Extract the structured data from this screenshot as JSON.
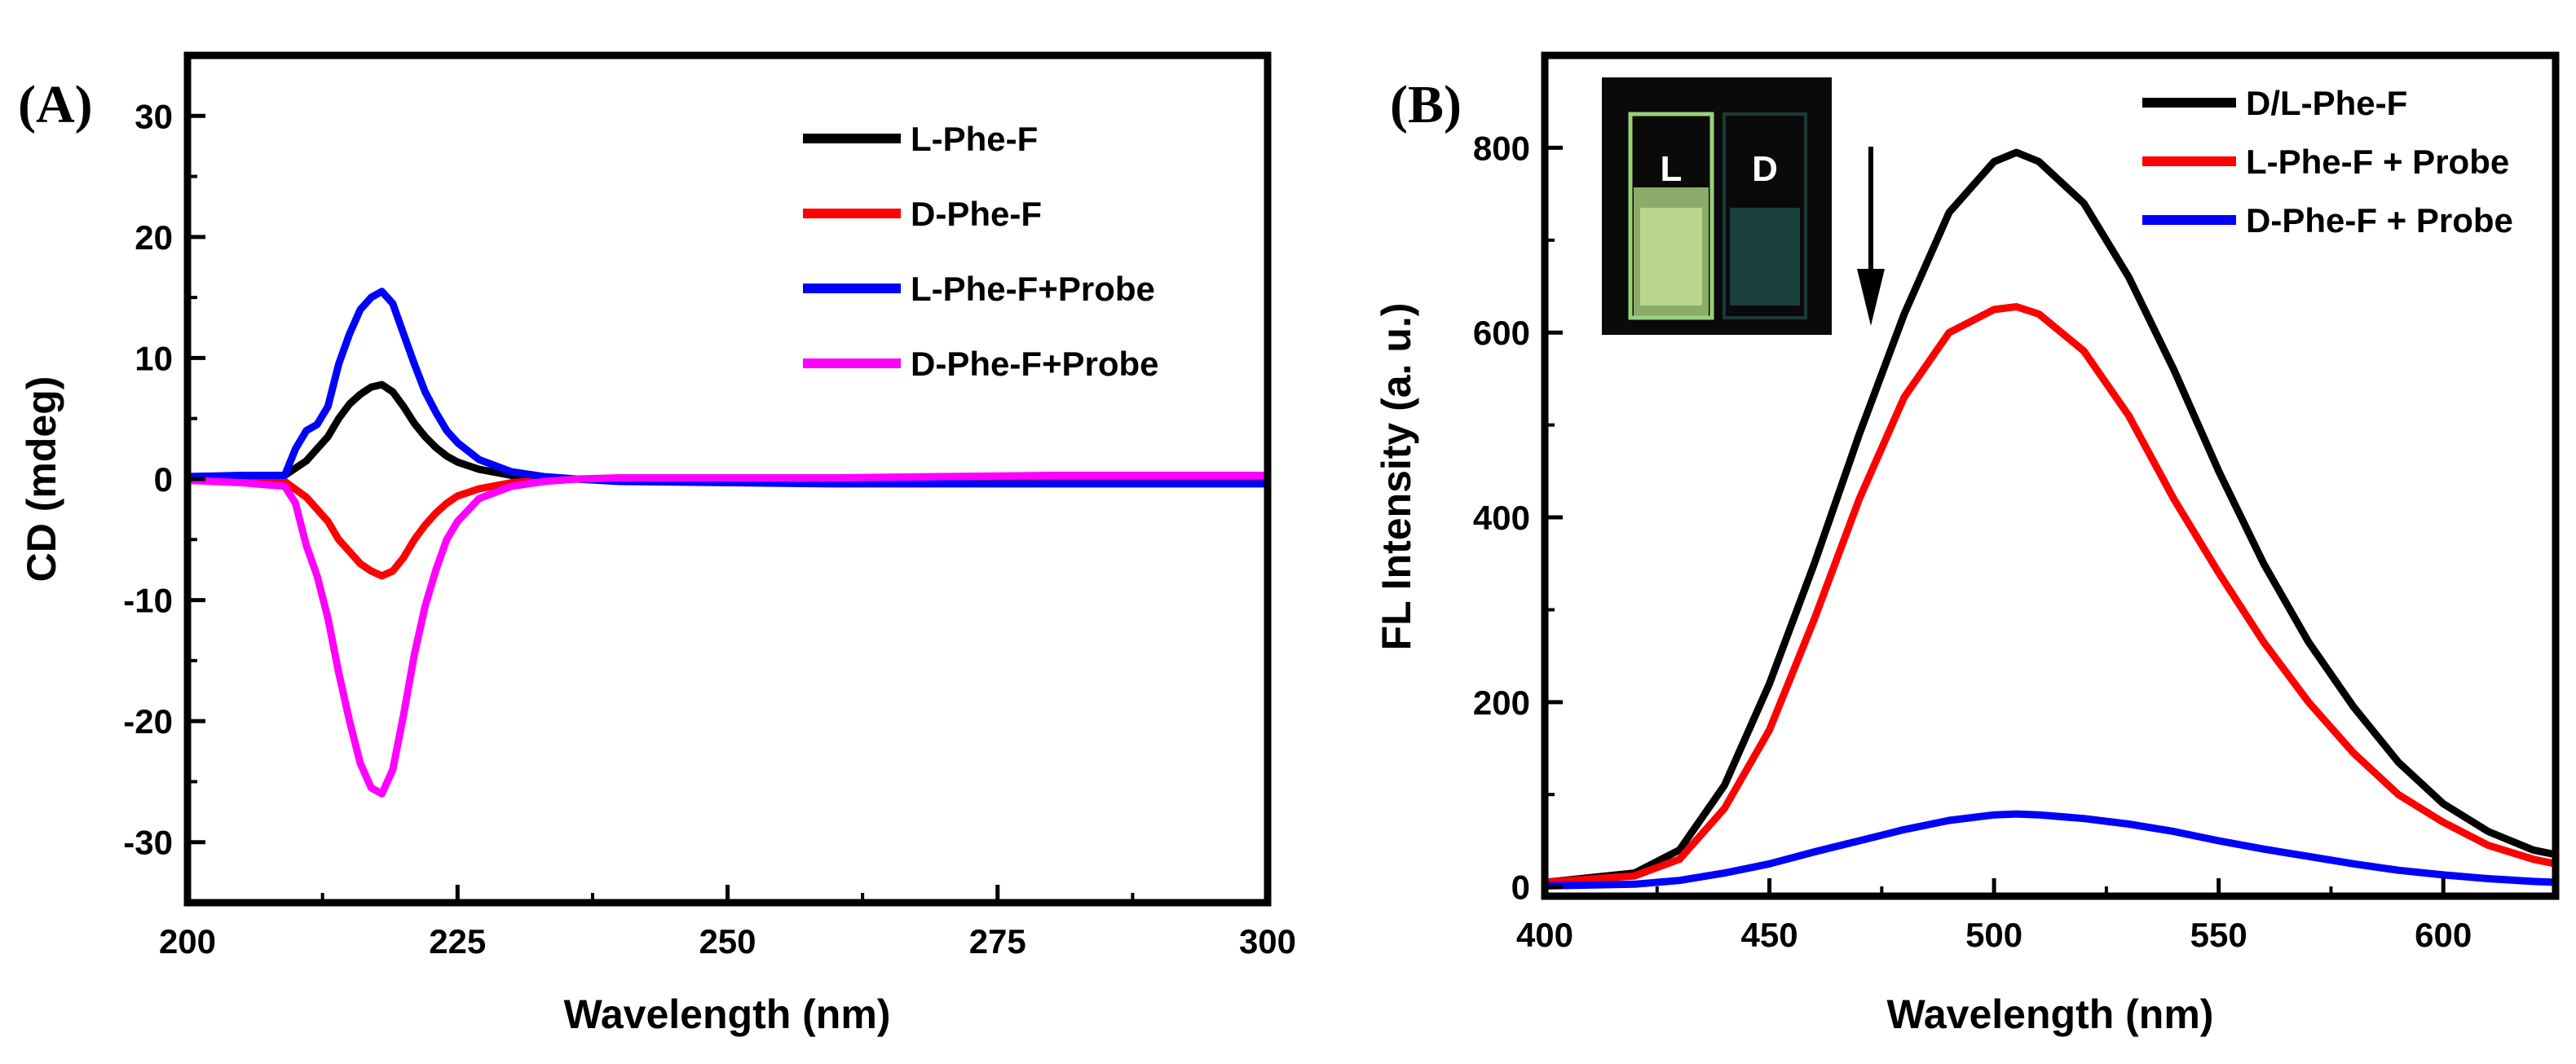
{
  "panels": [
    {
      "panel_label": "(A)",
      "chart_data": {
        "type": "line",
        "title": "",
        "xlabel": "Wavelength (nm)",
        "ylabel": "CD (mdeg)",
        "xlim": [
          200,
          300
        ],
        "ylim": [
          -35,
          35
        ],
        "xticks": [
          200,
          225,
          250,
          275,
          300
        ],
        "yticks": [
          -30,
          -20,
          -10,
          0,
          10,
          20,
          30
        ],
        "grid": false,
        "legend_position": "top-right",
        "series": [
          {
            "name": "L-Phe-F",
            "color": "#000000",
            "x": [
              200,
              205,
              209,
              211,
              212,
              213,
              214,
              215,
              216,
              217,
              218,
              219,
              220,
              221,
              222,
              223,
              224,
              225,
              227,
              230,
              233,
              236,
              240,
              260,
              280,
              300
            ],
            "y": [
              0.2,
              0.2,
              0.3,
              1.5,
              2.5,
              3.5,
              5.0,
              6.2,
              7.0,
              7.6,
              7.8,
              7.2,
              6.0,
              4.6,
              3.5,
              2.6,
              1.9,
              1.4,
              0.8,
              0.3,
              0.1,
              0.0,
              -0.1,
              -0.3,
              -0.3,
              -0.3
            ]
          },
          {
            "name": "D-Phe-F",
            "color": "#ff0000",
            "x": [
              200,
              205,
              209,
              211,
              212,
              213,
              214,
              215,
              216,
              217,
              218,
              219,
              220,
              221,
              222,
              223,
              224,
              225,
              227,
              230,
              233,
              236,
              240,
              260,
              280,
              300
            ],
            "y": [
              -0.1,
              -0.1,
              -0.2,
              -1.5,
              -2.5,
              -3.5,
              -5.0,
              -6.0,
              -7.0,
              -7.6,
              -8.0,
              -7.6,
              -6.5,
              -5.0,
              -3.8,
              -2.8,
              -2.0,
              -1.4,
              -0.8,
              -0.3,
              -0.1,
              0.0,
              0.0,
              0.0,
              0.0,
              0.0
            ]
          },
          {
            "name": "L-Phe-F+Probe",
            "color": "#0000ff",
            "x": [
              200,
              205,
              209,
              210,
              211,
              212,
              213,
              214,
              215,
              216,
              217,
              218,
              219,
              220,
              221,
              222,
              223,
              224,
              225,
              227,
              230,
              233,
              236,
              240,
              260,
              280,
              300
            ],
            "y": [
              0.2,
              0.3,
              0.3,
              2.5,
              4.0,
              4.5,
              6.0,
              9.5,
              12.0,
              14.0,
              15.0,
              15.5,
              14.5,
              12.0,
              9.5,
              7.2,
              5.5,
              4.0,
              3.0,
              1.6,
              0.6,
              0.2,
              0.0,
              -0.2,
              -0.4,
              -0.4,
              -0.4
            ]
          },
          {
            "name": "D-Phe-F+Probe",
            "color": "#ff00ff",
            "x": [
              200,
              205,
              209,
              210,
              211,
              212,
              213,
              214,
              215,
              216,
              217,
              218,
              219,
              220,
              221,
              222,
              223,
              224,
              225,
              227,
              230,
              233,
              236,
              240,
              260,
              280,
              300
            ],
            "y": [
              -0.1,
              -0.3,
              -0.6,
              -2.0,
              -5.5,
              -8.0,
              -11.5,
              -16.0,
              -20.0,
              -23.5,
              -25.5,
              -26.0,
              -24.0,
              -19.5,
              -14.5,
              -10.5,
              -7.5,
              -5.0,
              -3.5,
              -1.6,
              -0.6,
              -0.2,
              0.0,
              0.1,
              0.1,
              0.3,
              0.3
            ]
          }
        ]
      }
    },
    {
      "panel_label": "(B)",
      "inset": {
        "labels": [
          "L",
          "D"
        ]
      },
      "chart_data": {
        "type": "line",
        "title": "",
        "xlabel": "Wavelength (nm)",
        "ylabel": "FL Intensity (a. u.)",
        "xlim": [
          400,
          625
        ],
        "ylim": [
          -10,
          900
        ],
        "xticks": [
          400,
          450,
          500,
          550,
          600
        ],
        "yticks": [
          0,
          200,
          400,
          600,
          800
        ],
        "grid": false,
        "legend_position": "top-right",
        "annotations": [
          "down-arrow at ~475 nm"
        ],
        "series": [
          {
            "name": "D/L-Phe-F",
            "color": "#000000",
            "x": [
              400,
              420,
              430,
              440,
              450,
              460,
              470,
              480,
              490,
              500,
              505,
              510,
              520,
              530,
              540,
              550,
              560,
              570,
              580,
              590,
              600,
              610,
              620,
              625
            ],
            "y": [
              5,
              15,
              40,
              110,
              220,
              350,
              490,
              620,
              730,
              785,
              795,
              785,
              740,
              660,
              560,
              450,
              350,
              265,
              195,
              135,
              90,
              60,
              40,
              35
            ]
          },
          {
            "name": "L-Phe-F + Probe",
            "color": "#ff0000",
            "x": [
              400,
              420,
              430,
              440,
              450,
              460,
              470,
              480,
              490,
              500,
              505,
              510,
              520,
              530,
              540,
              550,
              560,
              570,
              580,
              590,
              600,
              610,
              620,
              625
            ],
            "y": [
              5,
              12,
              30,
              85,
              170,
              290,
              420,
              530,
              600,
              625,
              628,
              620,
              580,
              510,
              420,
              340,
              265,
              200,
              145,
              100,
              70,
              45,
              30,
              25
            ]
          },
          {
            "name": "D-Phe-F + Probe",
            "color": "#0000ff",
            "x": [
              400,
              420,
              430,
              440,
              450,
              460,
              470,
              480,
              490,
              500,
              505,
              510,
              520,
              530,
              540,
              550,
              560,
              570,
              580,
              590,
              600,
              610,
              620,
              625
            ],
            "y": [
              1,
              3,
              7,
              15,
              25,
              38,
              50,
              62,
              72,
              78,
              79,
              78,
              74,
              68,
              60,
              50,
              41,
              33,
              25,
              18,
              13,
              9,
              6,
              5
            ]
          }
        ]
      }
    }
  ]
}
